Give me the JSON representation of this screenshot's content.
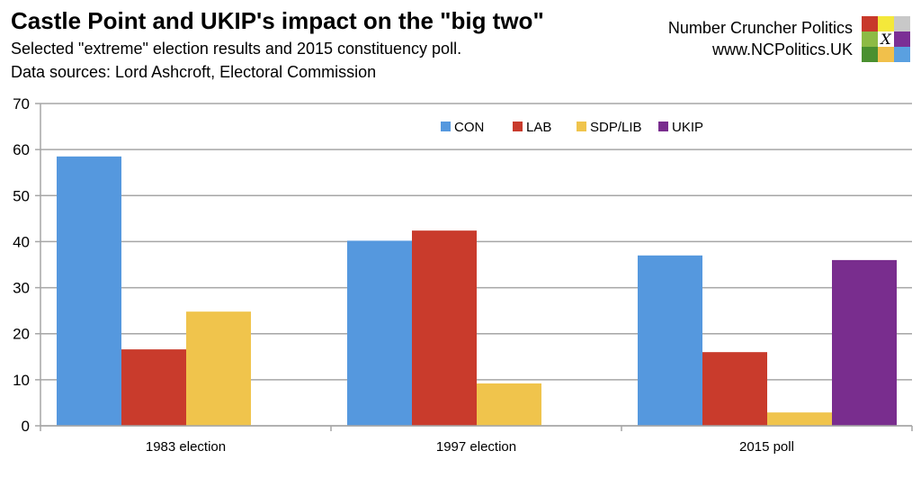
{
  "header": {
    "title": "Castle Point and UKIP's impact on the \"big two\"",
    "subtitle": "Selected \"extreme\" election results and 2015 constituency poll.",
    "sources": "Data sources: Lord Ashcroft, Electoral Commission",
    "brand_name": "Number Cruncher Politics",
    "brand_url": "www.NCPolitics.UK",
    "logo_text": "X",
    "logo_colors": [
      "#c8392b",
      "#f4e83a",
      "#c8c8c8",
      "#8dbb45",
      "#ffffff",
      "#7b2f95",
      "#4a9030",
      "#f1c04b",
      "#5aa0e0"
    ]
  },
  "chart_data": {
    "type": "bar",
    "categories": [
      "1983 election",
      "1997 election",
      "2015 poll"
    ],
    "series": [
      {
        "name": "CON",
        "color": "#5598de",
        "values": [
          58.5,
          40.2,
          37.0
        ]
      },
      {
        "name": "LAB",
        "color": "#c93b2c",
        "values": [
          16.6,
          42.4,
          16.0
        ]
      },
      {
        "name": "SDP/LIB",
        "color": "#f0c44c",
        "values": [
          24.8,
          9.2,
          2.9
        ]
      },
      {
        "name": "UKIP",
        "color": "#792d8e",
        "values": [
          null,
          null,
          36.0
        ]
      }
    ],
    "ylim": [
      0,
      70
    ],
    "yticks": [
      0,
      10,
      20,
      30,
      40,
      50,
      60,
      70
    ],
    "grid": true,
    "legend": "top-center"
  }
}
